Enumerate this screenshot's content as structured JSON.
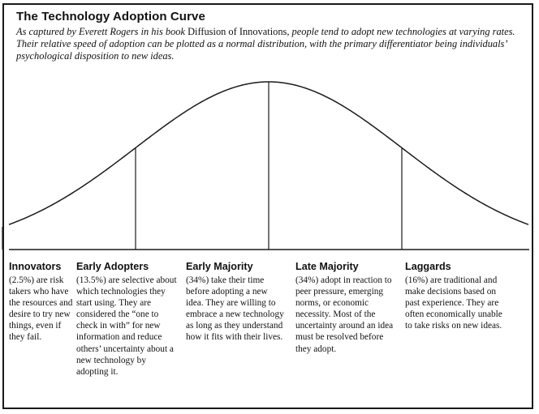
{
  "title": "The Technology Adoption Curve",
  "intro": {
    "part1": "As captured by Everett Rogers in his book ",
    "book": "Diffusion of Innovations",
    "part2": ", people tend to adopt new technologies at varying rates. Their relative speed of adoption can be plotted as a normal distribution, with the primary differentiator being individuals’ psychological disposition to new ideas."
  },
  "segments": [
    {
      "name": "Innovators",
      "description": "(2.5%) are risk takers who have the resources and desire to try new things, even if they fail."
    },
    {
      "name": "Early Adopters",
      "description": "(13.5%) are selective about which technologies they start using. They are considered the “one to check in with” for new information and reduce others’ uncertainty about a new technology by adopting it."
    },
    {
      "name": "Early Majority",
      "description": "(34%) take their time before adopting a new idea. They are willing to embrace a new technology as long as they understand how it fits with their lives."
    },
    {
      "name": "Late Majority",
      "description": "(34%) adopt in reaction to peer pressure, emerging norms, or economic necessity. Most of the uncertainty around an idea must be resolved before they adopt."
    },
    {
      "name": "Laggards",
      "description": "(16%) are traditional and make decisions based on past experience. They are often economically unable to take risks on new ideas."
    }
  ],
  "curve": {
    "type": "normal-distribution",
    "dividers_sd": [
      -2,
      -1,
      0,
      1
    ],
    "line_color": "#1a1a1a"
  }
}
